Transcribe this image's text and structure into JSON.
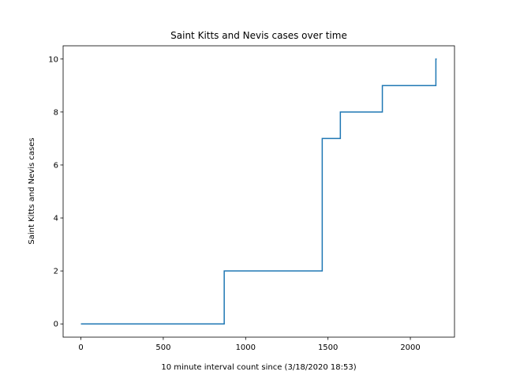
{
  "chart_data": {
    "type": "line",
    "title": "Saint Kitts and Nevis cases over time",
    "xlabel": "10 minute interval count since (3/18/2020 18:53)",
    "ylabel": "Saint Kitts and Nevis cases",
    "xlim": [
      -108,
      2268
    ],
    "ylim": [
      -0.5,
      10.5
    ],
    "xticks": [
      0,
      500,
      1000,
      1500,
      2000
    ],
    "yticks": [
      0,
      2,
      4,
      6,
      8,
      10
    ],
    "grid": false,
    "legend": "none",
    "series": [
      {
        "color": "#1f77b4",
        "points": [
          [
            0,
            0
          ],
          [
            870,
            0
          ],
          [
            870,
            2
          ],
          [
            1465,
            2
          ],
          [
            1465,
            7
          ],
          [
            1575,
            7
          ],
          [
            1575,
            8
          ],
          [
            1830,
            8
          ],
          [
            1830,
            9
          ],
          [
            2155,
            9
          ],
          [
            2155,
            10
          ],
          [
            2160,
            10
          ]
        ]
      }
    ]
  }
}
